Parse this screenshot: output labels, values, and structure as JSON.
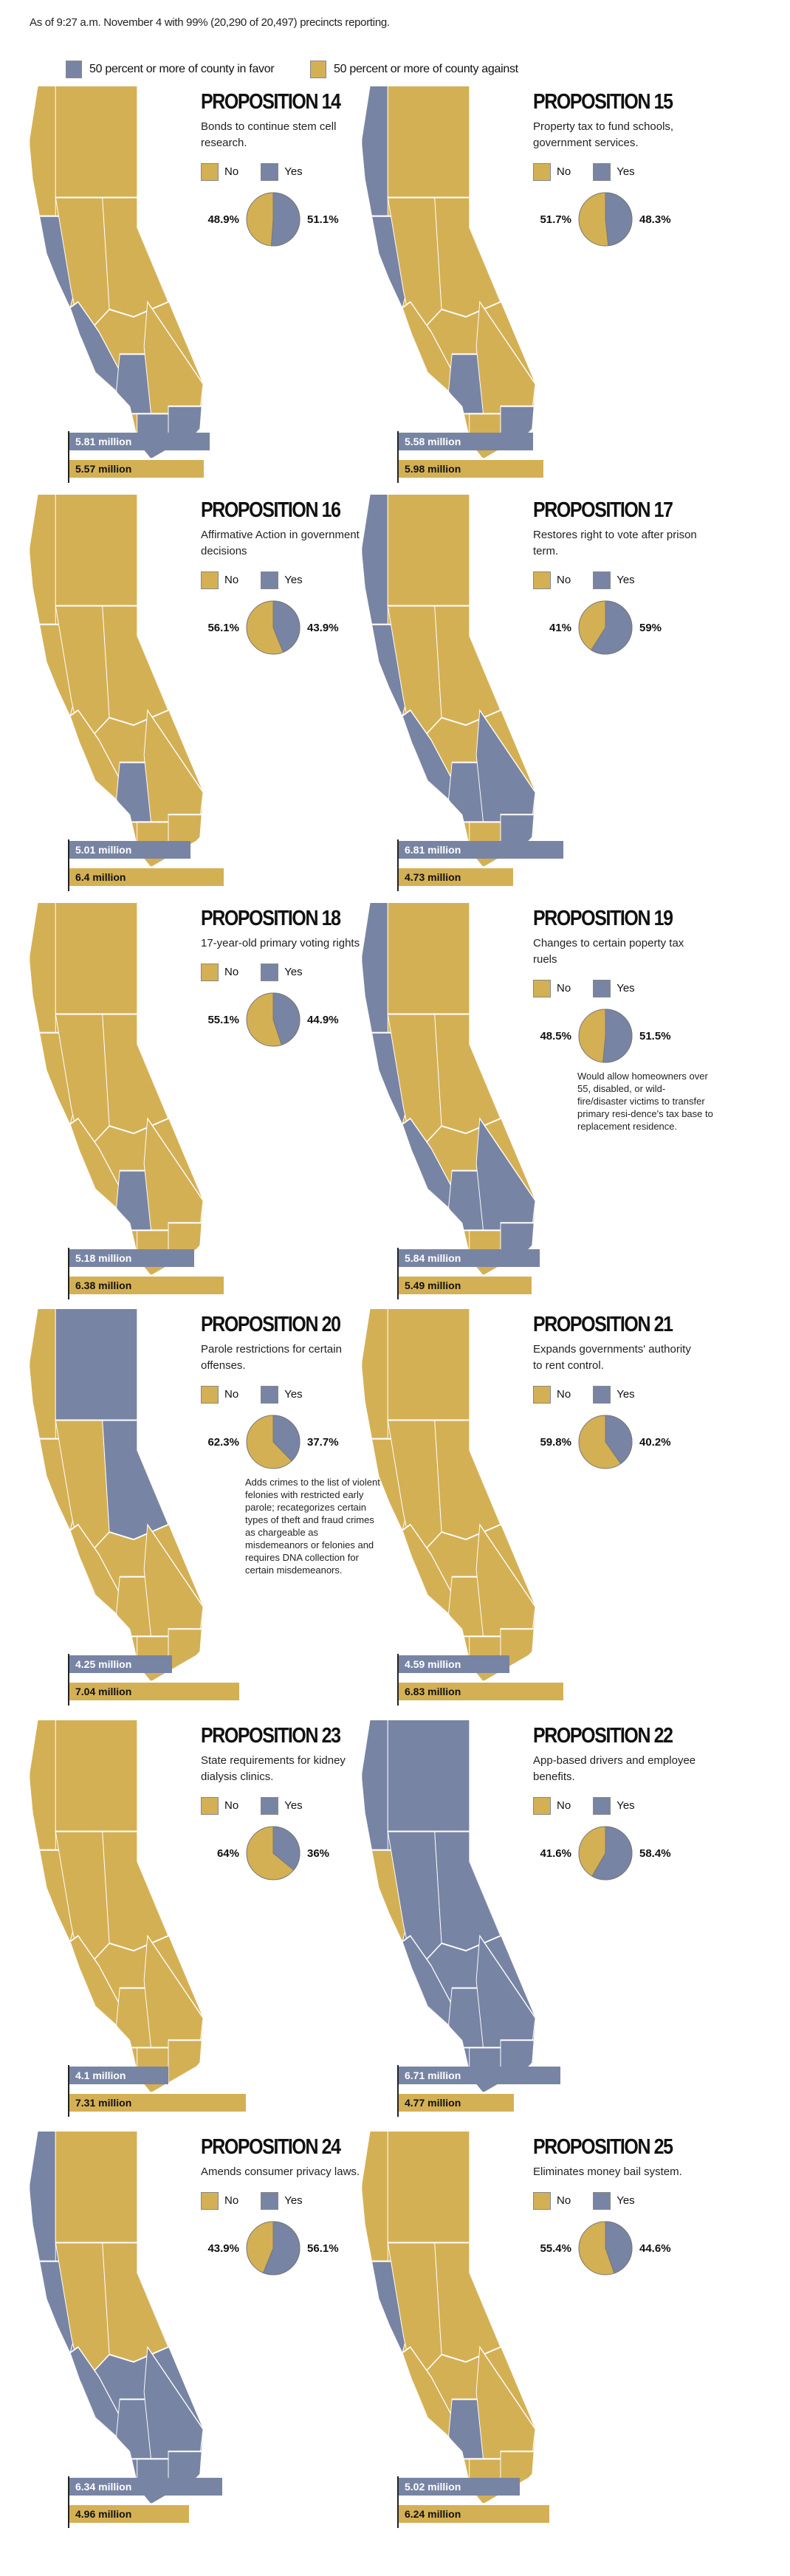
{
  "subtitle": "As of 9:27 a.m. November 4 with 99% (20,290 of 20,497) precincts reporting.",
  "legend": {
    "favor": "50 percent or more of county in favor",
    "against": "50 percent or more of county against"
  },
  "colors": {
    "yes": "#7884a4",
    "no": "#d4b055"
  },
  "labels": {
    "no": "No",
    "yes": "Yes"
  },
  "chart_data": [
    {
      "type": "pie",
      "title": "PROPOSITION 14",
      "description": "Bonds to continue stem cell research.",
      "no_pct": "48.9%",
      "yes_pct": "51.1%",
      "yes": 51.1,
      "yes_votes": "5.81 million",
      "no_votes": "5.57 million",
      "yes_millions": 5.81,
      "no_millions": 5.57,
      "favor_regions": [
        "bay",
        "central-coast",
        "la",
        "san-diego",
        "imperial"
      ]
    },
    {
      "type": "pie",
      "title": "PROPOSITION 15",
      "description": "Property tax to fund schools, government services.",
      "no_pct": "51.7%",
      "yes_pct": "48.3%",
      "yes": 48.3,
      "yes_votes": "5.58 million",
      "no_votes": "5.98 million",
      "yes_millions": 5.58,
      "no_millions": 5.98,
      "favor_regions": [
        "north-coast",
        "bay",
        "la",
        "imperial"
      ]
    },
    {
      "type": "pie",
      "title": "PROPOSITION 16",
      "description": "Affirmative Action in government decisions",
      "no_pct": "56.1%",
      "yes_pct": "43.9%",
      "yes": 43.9,
      "yes_votes": "5.01 million",
      "no_votes": "6.4 million",
      "yes_millions": 5.01,
      "no_millions": 6.4,
      "favor_regions": [
        "la"
      ]
    },
    {
      "type": "pie",
      "title": "PROPOSITION 17",
      "description": "Restores right to vote after prison term.",
      "no_pct": "41%",
      "yes_pct": "59%",
      "yes": 59,
      "yes_votes": "6.81 million",
      "no_votes": "4.73 million",
      "yes_millions": 6.81,
      "no_millions": 4.73,
      "favor_regions": [
        "north-coast",
        "bay",
        "central-coast",
        "la",
        "inland-empire",
        "imperial"
      ]
    },
    {
      "type": "pie",
      "title": "PROPOSITION 18",
      "description": "17-year-old primary voting rights",
      "no_pct": "55.1%",
      "yes_pct": "44.9%",
      "yes": 44.9,
      "yes_votes": "5.18 million",
      "no_votes": "6.38 million",
      "yes_millions": 5.18,
      "no_millions": 6.38,
      "favor_regions": [
        "la"
      ]
    },
    {
      "type": "pie",
      "title": "PROPOSITION 19",
      "description": "Changes to certain poperty tax ruels",
      "note": "Would allow homeowners over 55, disabled, or wild-fire/disaster victims to transfer primary resi-dence's tax base to replacement residence.",
      "no_pct": "48.5%",
      "yes_pct": "51.5%",
      "yes": 51.5,
      "yes_votes": "5.84 million",
      "no_votes": "5.49 million",
      "yes_millions": 5.84,
      "no_millions": 5.49,
      "favor_regions": [
        "north-coast",
        "bay",
        "central-coast",
        "la",
        "inland-empire",
        "imperial"
      ]
    },
    {
      "type": "pie",
      "title": "PROPOSITION 20",
      "description": "Parole restrictions for certain offenses.",
      "note": "Adds crimes to the list of violent felonies with restricted early parole; recategorizes certain types of theft and fraud crimes as chargeable as misdemeanors or felonies and requires DNA collection for certain misdemeanors.",
      "no_pct": "62.3%",
      "yes_pct": "37.7%",
      "yes": 37.7,
      "yes_votes": "4.25 million",
      "no_votes": "7.04 million",
      "yes_millions": 4.25,
      "no_millions": 7.04,
      "favor_regions": [
        "north-interior",
        "sierra"
      ]
    },
    {
      "type": "pie",
      "title": "PROPOSITION 21",
      "description": "Expands governments' authority to rent control.",
      "no_pct": "59.8%",
      "yes_pct": "40.2%",
      "yes": 40.2,
      "yes_votes": "4.59 million",
      "no_votes": "6.83 million",
      "yes_millions": 4.59,
      "no_millions": 6.83,
      "favor_regions": []
    },
    {
      "type": "pie",
      "title": "PROPOSITION 23",
      "description": "State requirements for kidney dialysis clinics.",
      "no_pct": "64%",
      "yes_pct": "36%",
      "yes": 36,
      "yes_votes": "4.1 million",
      "no_votes": "7.31 million",
      "yes_millions": 4.1,
      "no_millions": 7.31,
      "favor_regions": []
    },
    {
      "type": "pie",
      "title": "PROPOSITION 22",
      "description": "App-based drivers and employee benefits.",
      "no_pct": "41.6%",
      "yes_pct": "58.4%",
      "yes": 58.4,
      "yes_votes": "6.71 million",
      "no_votes": "4.77 million",
      "yes_millions": 6.71,
      "no_millions": 4.77,
      "favor_regions": [
        "north-coast",
        "north-interior",
        "central-valley",
        "sierra",
        "central-coast",
        "la",
        "inland-empire",
        "san-diego",
        "imperial"
      ]
    },
    {
      "type": "pie",
      "title": "PROPOSITION 24",
      "description": "Amends consumer privacy laws.",
      "no_pct": "43.9%",
      "yes_pct": "56.1%",
      "yes": 56.1,
      "yes_votes": "6.34 million",
      "no_votes": "4.96 million",
      "yes_millions": 6.34,
      "no_millions": 4.96,
      "favor_regions": [
        "north-coast",
        "bay",
        "central-coast",
        "la",
        "inland-empire",
        "san-diego",
        "imperial"
      ]
    },
    {
      "type": "pie",
      "title": "PROPOSITION 25",
      "description": "Eliminates money bail system.",
      "no_pct": "55.4%",
      "yes_pct": "44.6%",
      "yes": 44.6,
      "yes_votes": "5.02 million",
      "no_votes": "6.24 million",
      "yes_millions": 5.02,
      "no_millions": 6.24,
      "favor_regions": [
        "bay",
        "la"
      ]
    }
  ]
}
